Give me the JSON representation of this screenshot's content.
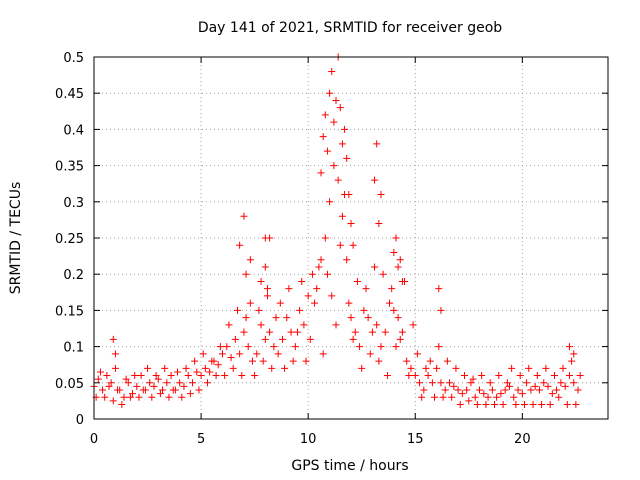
{
  "chart_data": {
    "type": "scatter",
    "title": "Day 141 of 2021, SRMTID for receiver geob",
    "xlabel": "GPS time / hours",
    "ylabel": "SRMTID / TECUs",
    "xlim": [
      0,
      24
    ],
    "ylim": [
      0,
      0.5
    ],
    "x_ticks": [
      0,
      5,
      10,
      15,
      20
    ],
    "x_tick_labels": [
      "0",
      "5",
      "10",
      "15",
      "20"
    ],
    "y_ticks": [
      0,
      0.05,
      0.1,
      0.15,
      0.2,
      0.25,
      0.3,
      0.35,
      0.4,
      0.45,
      0.5
    ],
    "y_tick_labels": [
      "0",
      "0.05",
      "0.1",
      "0.15",
      "0.2",
      "0.25",
      "0.3",
      "0.35",
      "0.4",
      "0.45",
      "0.5"
    ],
    "grid": true,
    "marker": "plus",
    "color": "#ff0000",
    "series": [
      {
        "name": "SRMTID",
        "x": [
          0.0,
          0.2,
          0.4,
          0.6,
          0.8,
          1.0,
          1.2,
          1.4,
          1.6,
          1.8,
          2.0,
          2.2,
          2.4,
          2.6,
          2.8,
          3.0,
          3.2,
          3.4,
          3.6,
          3.8,
          4.0,
          4.2,
          4.4,
          4.6,
          4.8,
          5.0,
          5.2,
          5.4,
          5.6,
          5.8,
          6.0,
          6.2,
          6.4,
          6.6,
          6.8,
          7.0,
          7.2,
          7.4,
          7.6,
          7.8,
          8.0,
          8.2,
          8.4,
          8.6,
          8.8,
          9.0,
          9.2,
          9.4,
          9.6,
          9.8,
          10.0,
          10.2,
          10.4,
          10.6,
          10.8,
          11.0,
          11.2,
          11.4,
          11.6,
          11.8,
          12.0,
          12.2,
          12.4,
          12.6,
          12.8,
          13.0,
          13.2,
          13.4,
          13.6,
          13.8,
          14.0,
          14.2,
          14.4,
          14.6,
          14.8,
          15.0,
          15.2,
          15.4,
          15.6,
          15.8,
          16.0,
          16.2,
          16.4,
          16.6,
          16.8,
          17.0,
          17.2,
          17.4,
          17.6,
          17.8,
          18.0,
          18.2,
          18.4,
          18.6,
          18.8,
          19.0,
          19.2,
          19.4,
          19.6,
          19.8,
          20.0,
          20.2,
          20.4,
          20.6,
          20.8,
          21.0,
          21.2,
          21.4,
          21.6,
          21.8,
          22.0,
          22.2,
          22.4,
          22.6,
          0.1,
          0.3,
          0.5,
          0.7,
          0.9,
          1.1,
          1.3,
          1.5,
          1.7,
          1.9,
          2.1,
          2.3,
          2.5,
          2.7,
          2.9,
          3.1,
          3.3,
          3.5,
          3.7,
          3.9,
          4.1,
          4.3,
          4.5,
          4.7,
          4.9,
          5.1,
          5.3,
          5.5,
          5.7,
          5.9,
          6.1,
          6.3,
          6.5,
          6.7,
          6.9,
          7.1,
          7.3,
          7.5,
          7.7,
          7.9,
          8.1,
          8.3,
          8.5,
          8.7,
          8.9,
          9.1,
          9.3,
          9.5,
          9.7,
          9.9,
          10.1,
          10.3,
          10.5,
          10.7,
          10.9,
          11.1,
          11.3,
          11.5,
          11.7,
          11.9,
          12.1,
          12.3,
          12.5,
          12.7,
          12.9,
          13.1,
          13.3,
          13.5,
          13.7,
          13.9,
          14.1,
          14.3,
          14.5,
          14.7,
          14.9,
          15.1,
          15.3,
          15.5,
          15.7,
          15.9,
          16.1,
          16.3,
          16.5,
          16.7,
          16.9,
          17.1,
          17.3,
          17.5,
          17.7,
          17.9,
          18.1,
          18.3,
          18.5,
          18.7,
          18.9,
          19.1,
          19.3,
          19.5,
          19.7,
          19.9,
          20.1,
          20.3,
          20.5,
          20.7,
          20.9,
          21.1,
          21.3,
          21.5,
          21.7,
          21.9,
          22.1,
          22.3,
          22.5,
          22.7,
          6.8,
          7.0,
          7.1,
          7.3,
          7.8,
          8.0,
          8.1,
          8.2,
          10.6,
          10.7,
          10.8,
          10.9,
          11.0,
          11.1,
          11.2,
          11.3,
          11.4,
          11.5,
          11.6,
          11.7,
          11.8,
          11.9,
          12.0,
          12.1,
          13.1,
          13.2,
          13.3,
          13.4,
          14.0,
          14.1,
          14.2,
          14.3,
          14.4,
          16.1,
          16.2,
          22.2,
          22.4,
          0.9,
          1.0,
          8.0
        ],
        "y": [
          0.045,
          0.055,
          0.04,
          0.06,
          0.05,
          0.07,
          0.04,
          0.03,
          0.05,
          0.035,
          0.045,
          0.06,
          0.04,
          0.05,
          0.045,
          0.055,
          0.04,
          0.05,
          0.06,
          0.04,
          0.05,
          0.045,
          0.06,
          0.05,
          0.065,
          0.06,
          0.07,
          0.065,
          0.08,
          0.075,
          0.09,
          0.1,
          0.085,
          0.11,
          0.09,
          0.12,
          0.1,
          0.08,
          0.09,
          0.13,
          0.11,
          0.12,
          0.1,
          0.09,
          0.11,
          0.14,
          0.12,
          0.1,
          0.15,
          0.13,
          0.17,
          0.2,
          0.18,
          0.22,
          0.25,
          0.3,
          0.35,
          0.33,
          0.28,
          0.22,
          0.14,
          0.12,
          0.1,
          0.15,
          0.14,
          0.12,
          0.13,
          0.1,
          0.12,
          0.16,
          0.15,
          0.14,
          0.12,
          0.08,
          0.07,
          0.06,
          0.05,
          0.04,
          0.06,
          0.05,
          0.07,
          0.05,
          0.04,
          0.05,
          0.045,
          0.04,
          0.035,
          0.04,
          0.05,
          0.03,
          0.04,
          0.035,
          0.03,
          0.04,
          0.03,
          0.035,
          0.04,
          0.045,
          0.03,
          0.04,
          0.035,
          0.05,
          0.04,
          0.045,
          0.04,
          0.05,
          0.045,
          0.035,
          0.04,
          0.05,
          0.045,
          0.06,
          0.05,
          0.04,
          0.03,
          0.065,
          0.03,
          0.045,
          0.025,
          0.04,
          0.02,
          0.055,
          0.03,
          0.06,
          0.03,
          0.04,
          0.07,
          0.03,
          0.06,
          0.035,
          0.07,
          0.03,
          0.04,
          0.065,
          0.03,
          0.07,
          0.035,
          0.08,
          0.04,
          0.09,
          0.05,
          0.08,
          0.06,
          0.1,
          0.06,
          0.13,
          0.07,
          0.15,
          0.06,
          0.14,
          0.16,
          0.06,
          0.15,
          0.08,
          0.17,
          0.07,
          0.14,
          0.16,
          0.07,
          0.18,
          0.08,
          0.12,
          0.19,
          0.08,
          0.11,
          0.16,
          0.21,
          0.09,
          0.2,
          0.17,
          0.13,
          0.24,
          0.31,
          0.16,
          0.11,
          0.19,
          0.07,
          0.18,
          0.09,
          0.21,
          0.08,
          0.2,
          0.06,
          0.18,
          0.1,
          0.11,
          0.19,
          0.06,
          0.13,
          0.09,
          0.03,
          0.07,
          0.08,
          0.03,
          0.1,
          0.03,
          0.08,
          0.03,
          0.07,
          0.02,
          0.06,
          0.025,
          0.055,
          0.02,
          0.06,
          0.02,
          0.05,
          0.02,
          0.06,
          0.02,
          0.05,
          0.07,
          0.02,
          0.06,
          0.02,
          0.07,
          0.02,
          0.06,
          0.02,
          0.07,
          0.02,
          0.06,
          0.03,
          0.07,
          0.02,
          0.08,
          0.02,
          0.06,
          0.24,
          0.28,
          0.2,
          0.22,
          0.19,
          0.21,
          0.18,
          0.25,
          0.34,
          0.39,
          0.42,
          0.37,
          0.45,
          0.48,
          0.41,
          0.44,
          0.5,
          0.43,
          0.38,
          0.4,
          0.36,
          0.31,
          0.27,
          0.24,
          0.33,
          0.38,
          0.27,
          0.31,
          0.23,
          0.25,
          0.21,
          0.22,
          0.19,
          0.18,
          0.15,
          0.1,
          0.09,
          0.11,
          0.09,
          0.25
        ]
      }
    ]
  }
}
